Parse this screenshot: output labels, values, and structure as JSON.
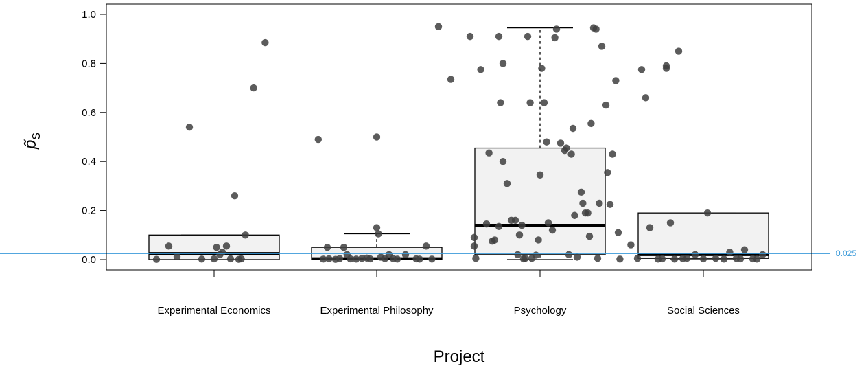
{
  "chart_data": {
    "type": "box",
    "xlabel": "Project",
    "ylabel": "p̃",
    "ylabel_subscript": "S",
    "ylim": [
      0,
      1.0
    ],
    "yticks": [
      "0.0",
      "0.2",
      "0.4",
      "0.6",
      "0.8",
      "1.0"
    ],
    "reference_line": {
      "value": 0.025,
      "label": "0.025",
      "color": "#3a9ad9"
    },
    "colors": {
      "box_fill": "#f2f2f2",
      "point": "#404040"
    },
    "categories": [
      "Experimental Economics",
      "Experimental Philosophy",
      "Psychology",
      "Social Sciences"
    ],
    "boxes": [
      {
        "name": "Experimental Economics",
        "whisker_low": 0.0,
        "q1": 0.0,
        "median": 0.025,
        "q3": 0.1,
        "whisker_high": 0.1,
        "points": [
          [
            -0.7,
            0.001
          ],
          [
            -0.55,
            0.055
          ],
          [
            -0.45,
            0.012
          ],
          [
            -0.3,
            0.54
          ],
          [
            -0.15,
            0.002
          ],
          [
            0.0,
            0.003
          ],
          [
            0.03,
            0.05
          ],
          [
            0.07,
            0.02
          ],
          [
            0.1,
            0.03
          ],
          [
            0.15,
            0.055
          ],
          [
            0.2,
            0.003
          ],
          [
            0.25,
            0.26
          ],
          [
            0.3,
            0.001
          ],
          [
            0.33,
            0.003
          ],
          [
            0.38,
            0.1
          ],
          [
            0.48,
            0.7
          ],
          [
            0.62,
            0.885
          ]
        ]
      },
      {
        "name": "Experimental Philosophy",
        "whisker_low": 0.0,
        "q1": 0.0,
        "median": 0.004,
        "q3": 0.05,
        "whisker_high": 0.105,
        "points": [
          [
            -0.71,
            0.49
          ],
          [
            -0.65,
            0.002
          ],
          [
            -0.6,
            0.05
          ],
          [
            -0.58,
            0.003
          ],
          [
            -0.5,
            0.001
          ],
          [
            -0.45,
            0.004
          ],
          [
            -0.4,
            0.05
          ],
          [
            -0.36,
            0.02
          ],
          [
            -0.32,
            0.003
          ],
          [
            -0.25,
            0.002
          ],
          [
            -0.18,
            0.005
          ],
          [
            -0.12,
            0.006
          ],
          [
            -0.08,
            0.003
          ],
          [
            0.0,
            0.13
          ],
          [
            0.0,
            0.5
          ],
          [
            0.02,
            0.105
          ],
          [
            0.05,
            0.01
          ],
          [
            0.1,
            0.004
          ],
          [
            0.15,
            0.02
          ],
          [
            0.2,
            0.004
          ],
          [
            0.25,
            0.002
          ],
          [
            0.35,
            0.02
          ],
          [
            0.48,
            0.003
          ],
          [
            0.52,
            0.002
          ],
          [
            0.6,
            0.055
          ],
          [
            0.67,
            0.002
          ],
          [
            0.75,
            0.95
          ],
          [
            0.9,
            0.735
          ]
        ]
      },
      {
        "name": "Psychology",
        "whisker_low": 0.0,
        "q1": 0.02,
        "median": 0.14,
        "q3": 0.455,
        "whisker_high": 0.945,
        "points": [
          [
            -0.85,
            0.91
          ],
          [
            -0.8,
            0.09
          ],
          [
            -0.8,
            0.055
          ],
          [
            -0.78,
            0.005
          ],
          [
            -0.72,
            0.775
          ],
          [
            -0.65,
            0.145
          ],
          [
            -0.62,
            0.435
          ],
          [
            -0.58,
            0.075
          ],
          [
            -0.55,
            0.08
          ],
          [
            -0.5,
            0.135
          ],
          [
            -0.5,
            0.91
          ],
          [
            -0.48,
            0.64
          ],
          [
            -0.45,
            0.8
          ],
          [
            -0.45,
            0.4
          ],
          [
            -0.4,
            0.31
          ],
          [
            -0.35,
            0.16
          ],
          [
            -0.3,
            0.16
          ],
          [
            -0.27,
            0.02
          ],
          [
            -0.25,
            0.1
          ],
          [
            -0.22,
            0.14
          ],
          [
            -0.2,
            0.003
          ],
          [
            -0.18,
            0.005
          ],
          [
            -0.15,
            0.91
          ],
          [
            -0.12,
            0.64
          ],
          [
            -0.1,
            0.005
          ],
          [
            -0.05,
            0.018
          ],
          [
            -0.02,
            0.08
          ],
          [
            0.0,
            0.345
          ],
          [
            0.02,
            0.78
          ],
          [
            0.05,
            0.64
          ],
          [
            0.08,
            0.48
          ],
          [
            0.1,
            0.15
          ],
          [
            0.15,
            0.12
          ],
          [
            0.18,
            0.905
          ],
          [
            0.2,
            0.94
          ],
          [
            0.25,
            0.475
          ],
          [
            0.3,
            0.445
          ],
          [
            0.32,
            0.455
          ],
          [
            0.35,
            0.02
          ],
          [
            0.38,
            0.43
          ],
          [
            0.4,
            0.535
          ],
          [
            0.42,
            0.18
          ],
          [
            0.45,
            0.01
          ],
          [
            0.5,
            0.275
          ],
          [
            0.52,
            0.23
          ],
          [
            0.55,
            0.19
          ],
          [
            0.58,
            0.19
          ],
          [
            0.6,
            0.095
          ],
          [
            0.62,
            0.555
          ],
          [
            0.65,
            0.945
          ],
          [
            0.68,
            0.94
          ],
          [
            0.7,
            0.005
          ],
          [
            0.72,
            0.23
          ],
          [
            0.75,
            0.87
          ],
          [
            0.8,
            0.63
          ],
          [
            0.82,
            0.355
          ],
          [
            0.85,
            0.225
          ],
          [
            0.88,
            0.43
          ],
          [
            0.92,
            0.73
          ],
          [
            0.95,
            0.11
          ],
          [
            0.97,
            0.002
          ]
        ]
      },
      {
        "name": "Social Sciences",
        "whisker_low": 0.0,
        "q1": 0.005,
        "median": 0.02,
        "q3": 0.19,
        "whisker_high": 0.19,
        "points": [
          [
            -0.88,
            0.06
          ],
          [
            -0.8,
            0.005
          ],
          [
            -0.75,
            0.775
          ],
          [
            -0.7,
            0.66
          ],
          [
            -0.65,
            0.13
          ],
          [
            -0.55,
            0.002
          ],
          [
            -0.5,
            0.003
          ],
          [
            -0.45,
            0.78
          ],
          [
            -0.45,
            0.79
          ],
          [
            -0.4,
            0.15
          ],
          [
            -0.35,
            0.002
          ],
          [
            -0.3,
            0.85
          ],
          [
            -0.25,
            0.004
          ],
          [
            -0.2,
            0.005
          ],
          [
            -0.1,
            0.02
          ],
          [
            0.0,
            0.003
          ],
          [
            0.05,
            0.19
          ],
          [
            0.15,
            0.005
          ],
          [
            0.25,
            0.002
          ],
          [
            0.32,
            0.03
          ],
          [
            0.4,
            0.005
          ],
          [
            0.45,
            0.003
          ],
          [
            0.5,
            0.04
          ],
          [
            0.6,
            0.003
          ],
          [
            0.65,
            0.002
          ],
          [
            0.72,
            0.02
          ]
        ]
      }
    ]
  }
}
